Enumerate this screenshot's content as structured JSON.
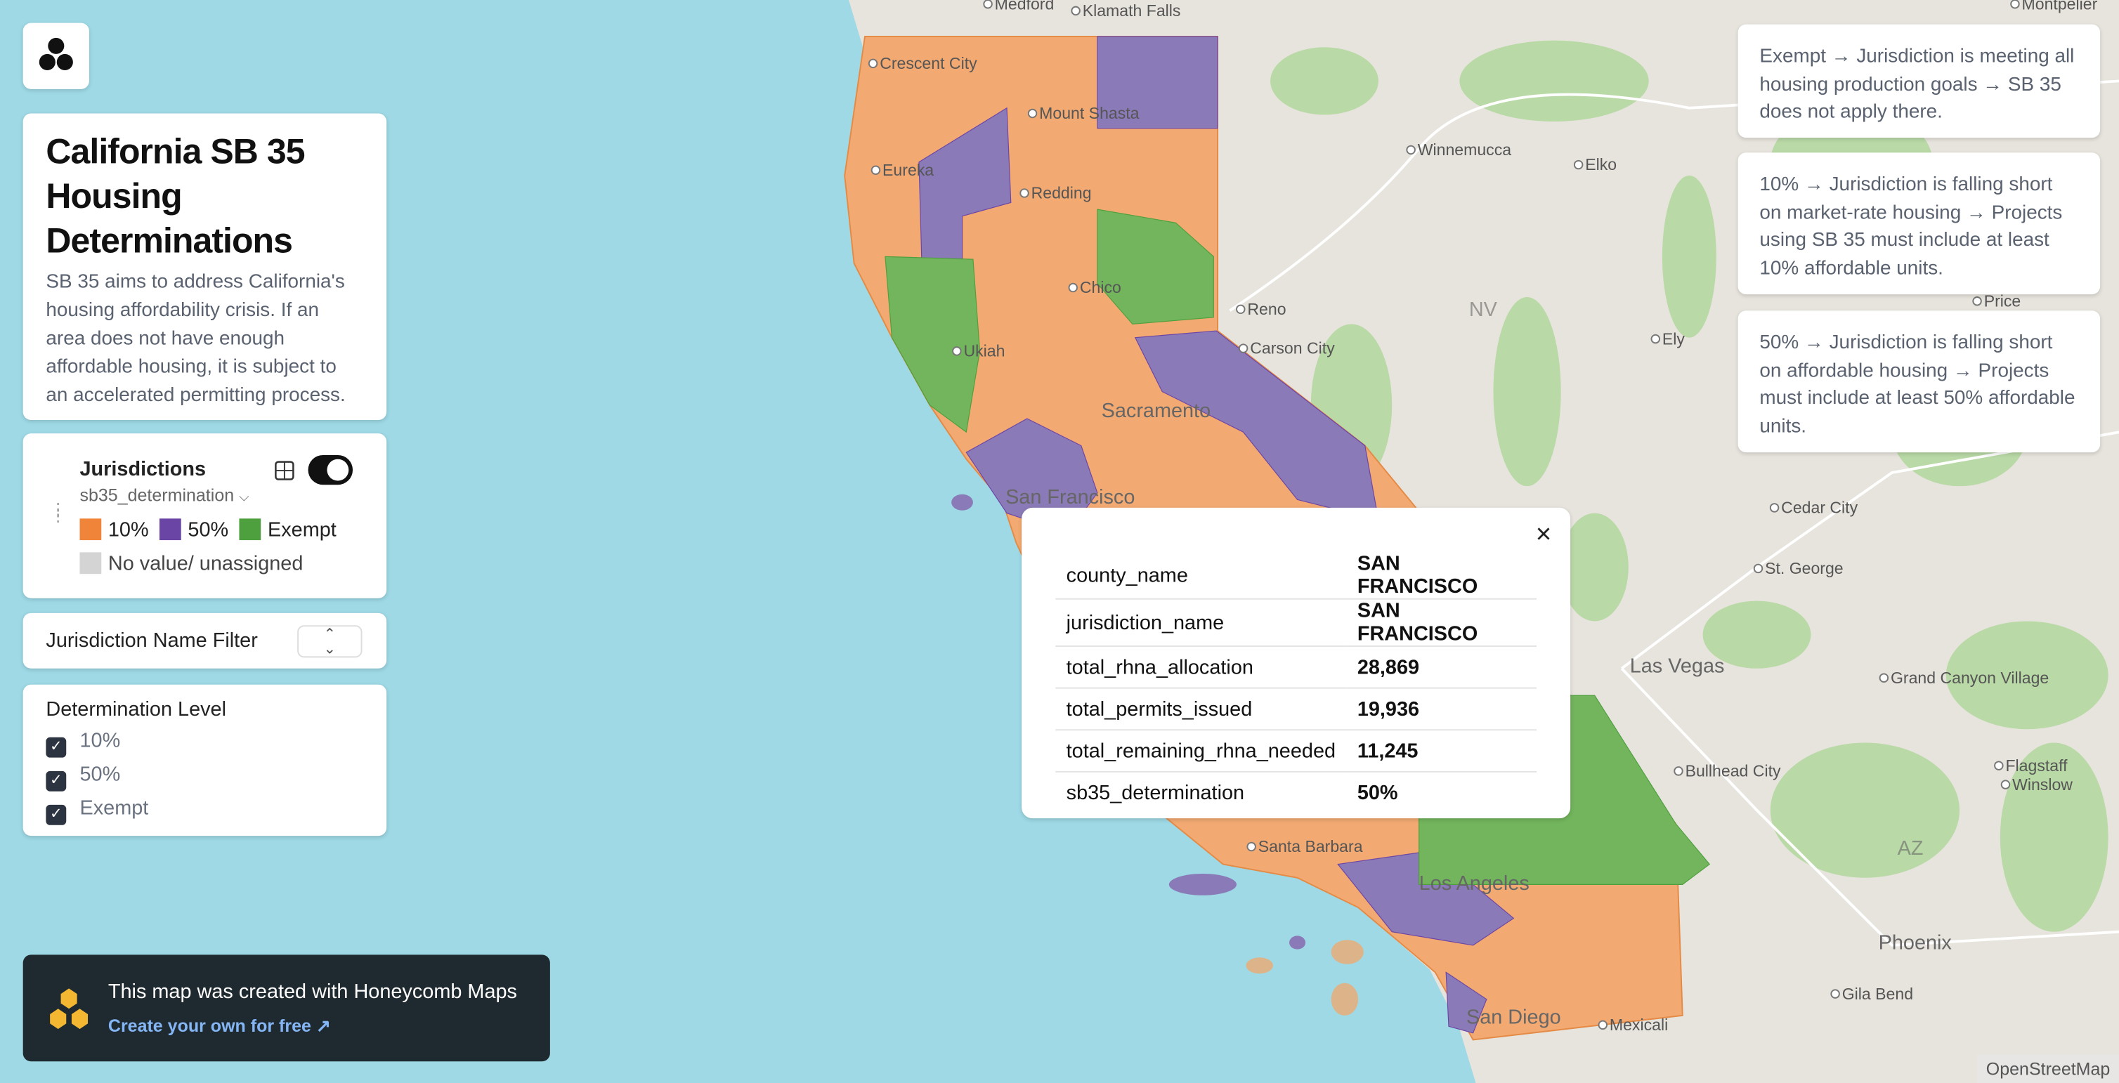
{
  "header": {
    "title": "California SB 35 Housing Determinations",
    "description": "SB 35 aims to address California's housing affordability crisis. If an area does not have enough affordable housing, it is subject to an accelerated permitting process."
  },
  "layer": {
    "name": "Jurisdictions",
    "field": "sb35_determination",
    "legend": [
      {
        "label": "10%",
        "color": "#f0853a"
      },
      {
        "label": "50%",
        "color": "#6b45a5"
      },
      {
        "label": "Exempt",
        "color": "#4e9f3d"
      },
      {
        "label": "No value/ unassigned",
        "color": "#d4d4d4"
      }
    ]
  },
  "name_filter": {
    "label": "Jurisdiction Name Filter"
  },
  "determination_filter": {
    "title": "Determination Level",
    "options": [
      "10%",
      "50%",
      "Exempt"
    ]
  },
  "notes": [
    "Exempt → Jurisdiction is meeting all housing production goals → SB 35 does not apply there.",
    "10% → Jurisdiction is falling short on market-rate housing → Projects using SB 35 must include at least 10% affordable units.",
    "50% → Jurisdiction is falling short on affordable housing → Projects must include at least 50% affordable units."
  ],
  "popup": {
    "rows": [
      [
        "county_name",
        "SAN FRANCISCO"
      ],
      [
        "jurisdiction_name",
        "SAN FRANCISCO"
      ],
      [
        "total_rhna_allocation",
        "28,869"
      ],
      [
        "total_permits_issued",
        "19,936"
      ],
      [
        "total_remaining_rhna_needed",
        "11,245"
      ],
      [
        "sb35_determination",
        "50%"
      ]
    ]
  },
  "banner": {
    "title": "This map was created with Honeycomb Maps",
    "link": "Create your own for free"
  },
  "map_labels": [
    "Medford",
    "Klamath Falls",
    "Crescent City",
    "Mount Shasta",
    "Eureka",
    "Redding",
    "Chico",
    "Reno",
    "Carson City",
    "Ukiah",
    "Sacramento",
    "San Francisco",
    "Winnemucca",
    "Elko",
    "NV",
    "Ely",
    "Price",
    "Cedar City",
    "St. George",
    "Las Vegas",
    "Grand Canyon Village",
    "Bullhead City",
    "Flagstaff",
    "Winslow",
    "AZ",
    "Phoenix",
    "Gila Bend",
    "Santa Barbara",
    "Los Angeles",
    "San Diego",
    "Mexicali",
    "Montpelier"
  ],
  "attribution": "OpenStreetMap"
}
